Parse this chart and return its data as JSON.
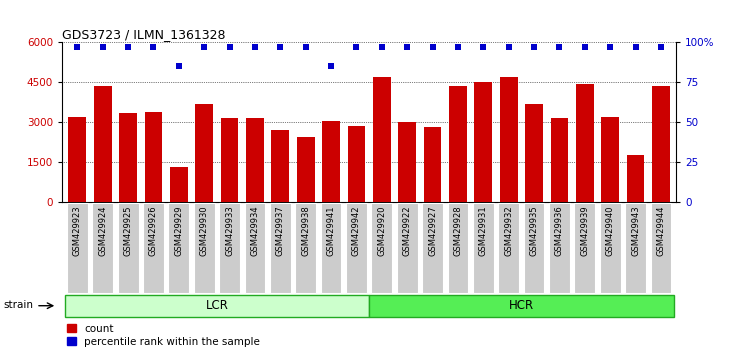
{
  "title": "GDS3723 / ILMN_1361328",
  "categories": [
    "GSM429923",
    "GSM429924",
    "GSM429925",
    "GSM429926",
    "GSM429929",
    "GSM429930",
    "GSM429933",
    "GSM429934",
    "GSM429937",
    "GSM429938",
    "GSM429941",
    "GSM429942",
    "GSM429920",
    "GSM429922",
    "GSM429927",
    "GSM429928",
    "GSM429931",
    "GSM429932",
    "GSM429935",
    "GSM429936",
    "GSM429939",
    "GSM429940",
    "GSM429943",
    "GSM429944"
  ],
  "counts": [
    3200,
    4350,
    3350,
    3400,
    1300,
    3700,
    3150,
    3150,
    2700,
    2450,
    3050,
    2850,
    4700,
    3000,
    2800,
    4350,
    4500,
    4700,
    3700,
    3150,
    4450,
    3200,
    1750,
    4350
  ],
  "percentile_values": [
    5820,
    5820,
    5820,
    5820,
    5100,
    5820,
    5820,
    5820,
    5820,
    5820,
    5100,
    5820,
    5820,
    5820,
    5820,
    5820,
    5820,
    5820,
    5820,
    5820,
    5820,
    5820,
    5820,
    5820
  ],
  "bar_color": "#cc0000",
  "dot_color": "#0000cc",
  "ylim_left": [
    0,
    6000
  ],
  "ylim_right": [
    0,
    100
  ],
  "yticks_left": [
    0,
    1500,
    3000,
    4500,
    6000
  ],
  "yticks_right": [
    0,
    25,
    50,
    75,
    100
  ],
  "lcr_count": 12,
  "lcr_label": "LCR",
  "hcr_label": "HCR",
  "strain_label": "strain",
  "legend_count_label": "count",
  "legend_percentile_label": "percentile rank within the sample",
  "lcr_facecolor": "#ccffcc",
  "hcr_facecolor": "#55ee55",
  "tick_bg_color": "#cccccc",
  "grid_color": "#000000",
  "right_yaxis_last_label": "100%"
}
